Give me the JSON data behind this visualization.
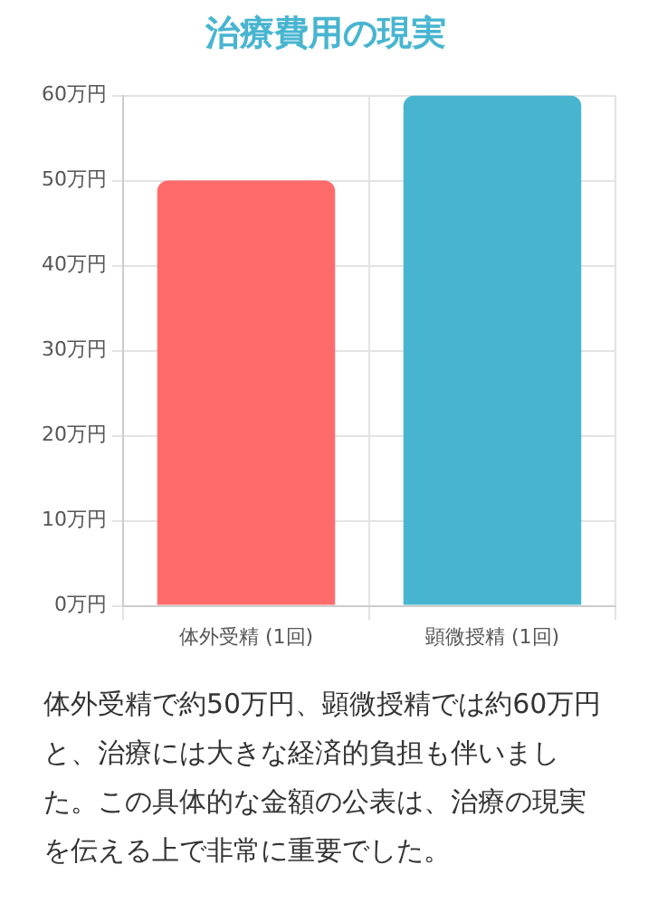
{
  "chart_data": {
    "type": "bar",
    "title": "治療費用の現実",
    "categories": [
      "体外受精 (1回)",
      "顕微授精 (1回)"
    ],
    "values": [
      50,
      60
    ],
    "colors": [
      "#ff6b6b",
      "#48b5d0"
    ],
    "ylim": [
      0,
      60
    ],
    "yticks": [
      {
        "value": 0,
        "label": "0万円"
      },
      {
        "value": 10,
        "label": "10万円"
      },
      {
        "value": 20,
        "label": "20万円"
      },
      {
        "value": 30,
        "label": "30万円"
      },
      {
        "value": 40,
        "label": "40万円"
      },
      {
        "value": 50,
        "label": "50万円"
      },
      {
        "value": 60,
        "label": "60万円"
      }
    ],
    "grid": true,
    "legend": false,
    "annotations": [
      "体外受精で約50万円、顕微授精では約60万円と、治療には大きな経済的負担も伴いました。この具体的な金額の公表は、治療の現実を伝える上で非常に重要でした。"
    ]
  }
}
